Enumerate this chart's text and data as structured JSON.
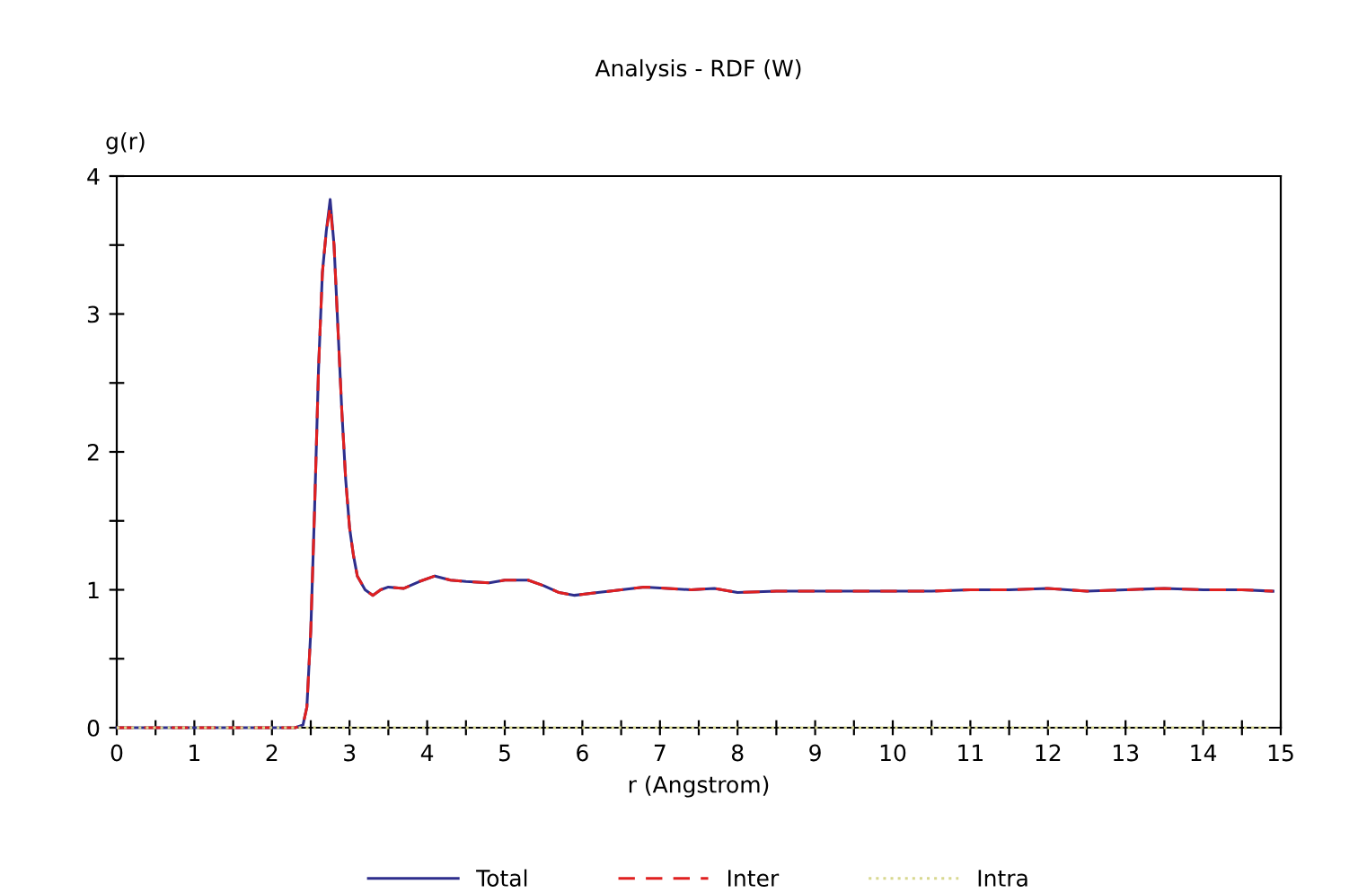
{
  "chart_data": {
    "type": "line",
    "title": "Analysis - RDF (W)",
    "xlabel": "r (Angstrom)",
    "ylabel": "g(r)",
    "x": [
      0,
      0.5,
      1,
      1.5,
      2,
      2.3,
      2.4,
      2.45,
      2.5,
      2.55,
      2.6,
      2.65,
      2.7,
      2.75,
      2.8,
      2.85,
      2.9,
      2.95,
      3.0,
      3.05,
      3.1,
      3.2,
      3.3,
      3.4,
      3.5,
      3.7,
      3.9,
      4.1,
      4.3,
      4.5,
      4.8,
      5.0,
      5.3,
      5.5,
      5.7,
      5.9,
      6.2,
      6.5,
      6.8,
      7.1,
      7.4,
      7.7,
      8.0,
      8.5,
      9,
      9.5,
      10,
      10.5,
      11,
      11.5,
      12,
      12.5,
      13,
      13.5,
      14,
      14.5,
      14.9
    ],
    "series": [
      {
        "name": "Total",
        "color": "#2e2e8c",
        "line_style": "solid",
        "values": [
          0,
          0,
          0,
          0,
          0,
          0,
          0.02,
          0.15,
          0.7,
          1.6,
          2.6,
          3.3,
          3.6,
          3.83,
          3.5,
          2.9,
          2.3,
          1.8,
          1.45,
          1.25,
          1.1,
          1.0,
          0.96,
          1.0,
          1.02,
          1.01,
          1.06,
          1.1,
          1.07,
          1.06,
          1.05,
          1.07,
          1.07,
          1.03,
          0.98,
          0.96,
          0.98,
          1.0,
          1.02,
          1.01,
          1.0,
          1.01,
          0.98,
          0.99,
          0.99,
          0.99,
          0.99,
          0.99,
          1.0,
          1.0,
          1.01,
          0.99,
          1.0,
          1.01,
          1.0,
          1.0,
          0.99
        ]
      },
      {
        "name": "Inter",
        "color": "#e02020",
        "line_style": "dashed",
        "values": [
          0,
          0,
          0,
          0,
          0,
          0,
          0.02,
          0.15,
          0.7,
          1.6,
          2.6,
          3.3,
          3.6,
          3.78,
          3.5,
          2.9,
          2.3,
          1.8,
          1.45,
          1.25,
          1.1,
          1.0,
          0.96,
          1.0,
          1.02,
          1.01,
          1.06,
          1.1,
          1.07,
          1.06,
          1.05,
          1.07,
          1.07,
          1.03,
          0.98,
          0.96,
          0.98,
          1.0,
          1.02,
          1.01,
          1.0,
          1.01,
          0.98,
          0.99,
          0.99,
          0.99,
          0.99,
          0.99,
          1.0,
          1.0,
          1.01,
          0.99,
          1.0,
          1.01,
          1.0,
          1.0,
          0.99
        ]
      },
      {
        "name": "Intra",
        "color": "#d8d890",
        "line_style": "dotted",
        "values": [
          0,
          0,
          0,
          0,
          0,
          0,
          0,
          0,
          0,
          0,
          0,
          0,
          0,
          0,
          0,
          0,
          0,
          0,
          0,
          0,
          0,
          0,
          0,
          0,
          0,
          0,
          0,
          0,
          0,
          0,
          0,
          0,
          0,
          0,
          0,
          0,
          0,
          0,
          0,
          0,
          0,
          0,
          0,
          0,
          0,
          0,
          0,
          0,
          0,
          0,
          0,
          0,
          0,
          0,
          0,
          0,
          0
        ]
      }
    ],
    "xlim": [
      0,
      15
    ],
    "ylim": [
      0,
      4
    ],
    "xticks": [
      0,
      {
        "value": 0.5,
        "label": null
      },
      1,
      {
        "value": 1.5,
        "label": null
      },
      2,
      {
        "value": 2.5,
        "label": null
      },
      3,
      {
        "value": 3.5,
        "label": null
      },
      4,
      {
        "value": 4.5,
        "label": null
      },
      5,
      {
        "value": 5.5,
        "label": null
      },
      6,
      {
        "value": 6.5,
        "label": null
      },
      7,
      {
        "value": 7.5,
        "label": null
      },
      8,
      {
        "value": 8.5,
        "label": null
      },
      9,
      {
        "value": 9.5,
        "label": null
      },
      10,
      {
        "value": 10.5,
        "label": null
      },
      11,
      {
        "value": 11.5,
        "label": null
      },
      12,
      {
        "value": 12.5,
        "label": null
      },
      13,
      {
        "value": 13.5,
        "label": null
      },
      14,
      {
        "value": 14.5,
        "label": null
      },
      15
    ],
    "yticks": [
      0,
      {
        "value": 0.5,
        "label": null
      },
      1,
      {
        "value": 1.5,
        "label": null
      },
      2,
      {
        "value": 2.5,
        "label": null
      },
      3,
      {
        "value": 3.5,
        "label": null
      },
      4
    ],
    "grid": false,
    "legend": "bottom",
    "marker": "none"
  }
}
